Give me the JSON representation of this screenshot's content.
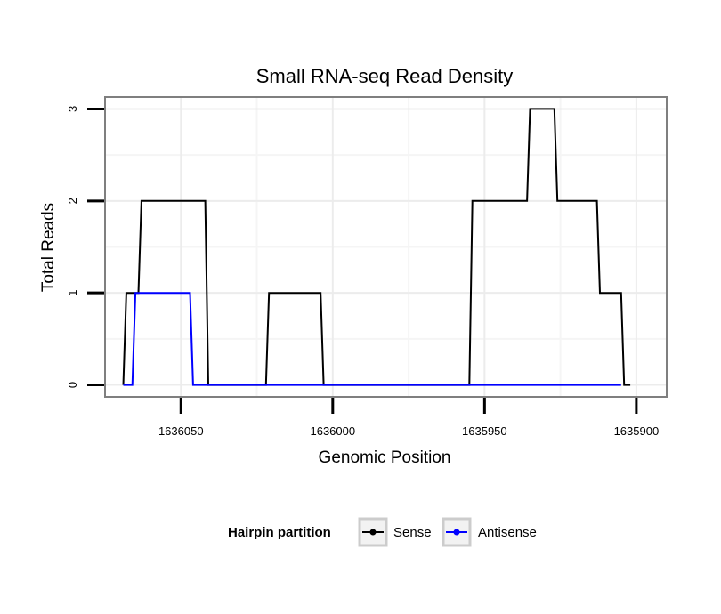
{
  "chart_data": {
    "type": "line",
    "title": "Small RNA-seq Read Density",
    "xlabel": "Genomic Position",
    "ylabel": "Total Reads",
    "xlim": [
      1636075,
      1635890
    ],
    "ylim": [
      -0.13,
      3.13
    ],
    "x_reversed": true,
    "grid": true,
    "xticks": [
      1636050,
      1636000,
      1635950,
      1635900
    ],
    "xtick_labels": [
      "1636050",
      "1636000",
      "1635950",
      "1635900"
    ],
    "yticks": [
      0,
      1,
      2,
      3
    ],
    "ytick_labels": [
      "0",
      "1",
      "2",
      "3"
    ],
    "legend": {
      "title": "Hairpin partition",
      "position": "bottom",
      "entries": [
        "Sense",
        "Antisense"
      ]
    },
    "series": [
      {
        "name": "Sense",
        "color": "#000000",
        "x": [
          1636069,
          1636068,
          1636064,
          1636063,
          1636042,
          1636041,
          1636022,
          1636021,
          1636004,
          1636003,
          1635955,
          1635954,
          1635936,
          1635935,
          1635927,
          1635926,
          1635913,
          1635912,
          1635905,
          1635904,
          1635902
        ],
        "y": [
          0,
          1,
          1,
          2,
          2,
          0,
          0,
          1,
          1,
          0,
          0,
          2,
          2,
          3,
          3,
          2,
          2,
          1,
          1,
          0,
          0
        ]
      },
      {
        "name": "Antisense",
        "color": "#0000ff",
        "x": [
          1636069,
          1636066,
          1636065,
          1636047,
          1636046,
          1635905
        ],
        "y": [
          0,
          0,
          1,
          1,
          0,
          0
        ]
      }
    ]
  }
}
